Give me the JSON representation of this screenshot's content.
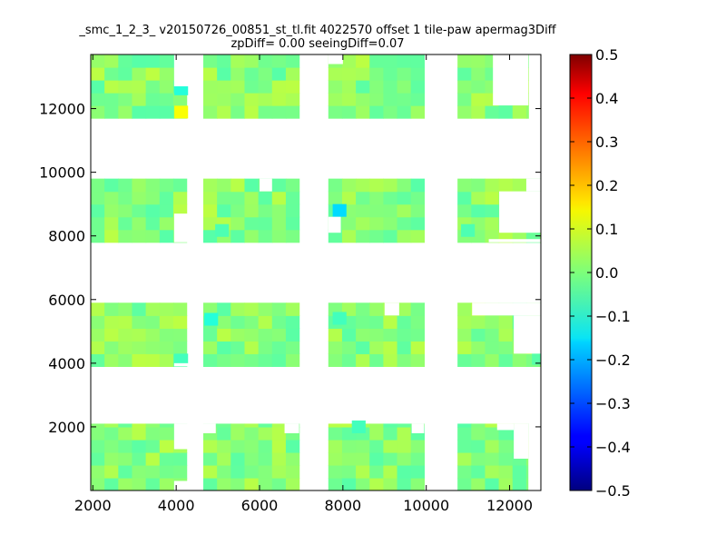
{
  "chart_data": {
    "type": "heatmap",
    "title": "_smc_1_2_3_ v20150726_00851_st_tl.fit 4022570 offset 1 tile-paw apermag3Diff",
    "subtitle": "zpDiff= 0.00 seeingDiff=0.07",
    "xlabel": "",
    "ylabel": "",
    "xlim": [
      1950,
      12750
    ],
    "ylim": [
      0,
      13700
    ],
    "xticks": [
      2000,
      4000,
      6000,
      8000,
      10000,
      12000
    ],
    "xtick_labels": [
      "2000",
      "4000",
      "6000",
      "8000",
      "10000",
      "12000"
    ],
    "yticks": [
      2000,
      4000,
      6000,
      8000,
      10000,
      12000
    ],
    "ytick_labels": [
      "2000",
      "4000",
      "6000",
      "8000",
      "10000",
      "12000"
    ],
    "grid": false,
    "colormap": "jet",
    "colorbar": {
      "vmin": -0.5,
      "vmax": 0.5,
      "ticks": [
        0.5,
        0.4,
        0.3,
        0.2,
        0.1,
        0.0,
        -0.1,
        -0.2,
        -0.3,
        -0.4,
        -0.5
      ],
      "tick_labels": [
        "0.5",
        "0.4",
        "0.3",
        "0.2",
        "0.1",
        "0.0",
        "−0.1",
        "−0.2",
        "−0.3",
        "−0.4",
        "−0.5"
      ]
    },
    "cell_size": [
      330,
      400
    ],
    "blocks": [
      {
        "x_range": [
          1950,
          4250
        ],
        "y_range": [
          0,
          2100
        ]
      },
      {
        "x_range": [
          4650,
          6950
        ],
        "y_range": [
          0,
          2100
        ]
      },
      {
        "x_range": [
          7650,
          9950
        ],
        "y_range": [
          0,
          2100
        ]
      },
      {
        "x_range": [
          10750,
          12450
        ],
        "y_range": [
          0,
          2100
        ]
      },
      {
        "x_range": [
          1950,
          4250
        ],
        "y_range": [
          3900,
          5900
        ]
      },
      {
        "x_range": [
          4650,
          6950
        ],
        "y_range": [
          3900,
          5900
        ]
      },
      {
        "x_range": [
          7650,
          9950
        ],
        "y_range": [
          3900,
          5900
        ]
      },
      {
        "x_range": [
          10750,
          12750
        ],
        "y_range": [
          3900,
          5900
        ]
      },
      {
        "x_range": [
          1950,
          4250
        ],
        "y_range": [
          7800,
          9800
        ]
      },
      {
        "x_range": [
          4650,
          6950
        ],
        "y_range": [
          7800,
          9800
        ]
      },
      {
        "x_range": [
          7650,
          9950
        ],
        "y_range": [
          7800,
          9800
        ]
      },
      {
        "x_range": [
          10750,
          12750
        ],
        "y_range": [
          7800,
          9800
        ]
      },
      {
        "x_range": [
          1950,
          4250
        ],
        "y_range": [
          11700,
          13700
        ]
      },
      {
        "x_range": [
          4650,
          6950
        ],
        "y_range": [
          11700,
          13700
        ]
      },
      {
        "x_range": [
          7650,
          9950
        ],
        "y_range": [
          11700,
          13700
        ]
      },
      {
        "x_range": [
          10750,
          12450
        ],
        "y_range": [
          11700,
          13700
        ]
      }
    ],
    "missing_regions": [
      {
        "x_range": [
          3950,
          4650
        ],
        "y_range": [
          12700,
          13700
        ]
      },
      {
        "x_range": [
          3950,
          4650
        ],
        "y_range": [
          7800,
          8700
        ]
      },
      {
        "x_range": [
          3950,
          4650
        ],
        "y_range": [
          0,
          300
        ]
      },
      {
        "x_range": [
          3950,
          4650
        ],
        "y_range": [
          1300,
          2100
        ]
      },
      {
        "x_range": [
          3950,
          4650
        ],
        "y_range": [
          3900,
          4000
        ]
      },
      {
        "x_range": [
          4350,
          4650
        ],
        "y_range": [
          9500,
          9800
        ]
      },
      {
        "x_range": [
          6000,
          6300
        ],
        "y_range": [
          9400,
          9800
        ]
      },
      {
        "x_range": [
          6600,
          6950
        ],
        "y_range": [
          1800,
          2100
        ]
      },
      {
        "x_range": [
          4650,
          4950
        ],
        "y_range": [
          1800,
          2100
        ]
      },
      {
        "x_range": [
          7650,
          8000
        ],
        "y_range": [
          13400,
          13700
        ]
      },
      {
        "x_range": [
          7650,
          7950
        ],
        "y_range": [
          8100,
          8600
        ]
      },
      {
        "x_range": [
          9000,
          9350
        ],
        "y_range": [
          5500,
          5900
        ]
      },
      {
        "x_range": [
          9650,
          9950
        ],
        "y_range": [
          1800,
          2100
        ]
      },
      {
        "x_range": [
          11600,
          12450
        ],
        "y_range": [
          12100,
          13700
        ]
      },
      {
        "x_range": [
          11500,
          12750
        ],
        "y_range": [
          7800,
          7900
        ]
      },
      {
        "x_range": [
          11750,
          12750
        ],
        "y_range": [
          8100,
          9400
        ]
      },
      {
        "x_range": [
          12400,
          12750
        ],
        "y_range": [
          9400,
          9800
        ]
      },
      {
        "x_range": [
          11100,
          12750
        ],
        "y_range": [
          5500,
          5900
        ]
      },
      {
        "x_range": [
          12100,
          12750
        ],
        "y_range": [
          4300,
          5500
        ]
      },
      {
        "x_range": [
          12100,
          12450
        ],
        "y_range": [
          1000,
          2100
        ]
      },
      {
        "x_range": [
          11700,
          12100
        ],
        "y_range": [
          1900,
          2100
        ]
      },
      {
        "x_range": [
          12450,
          12750
        ],
        "y_range": [
          0,
          2100
        ]
      }
    ],
    "highlighted_cells": [
      {
        "x": 4120,
        "y": 12620,
        "value": -0.09
      },
      {
        "x": 4120,
        "y": 11890,
        "value": 0.12
      },
      {
        "x": 7920,
        "y": 8800,
        "value": -0.16
      },
      {
        "x": 4840,
        "y": 5380,
        "value": -0.09
      },
      {
        "x": 7920,
        "y": 5410,
        "value": -0.06
      },
      {
        "x": 8380,
        "y": 2000,
        "value": -0.06
      },
      {
        "x": 4120,
        "y": 4100,
        "value": -0.06
      },
      {
        "x": 11000,
        "y": 8170,
        "value": -0.05
      },
      {
        "x": 5100,
        "y": 8170,
        "value": -0.05
      },
      {
        "x": 12700,
        "y": 4150,
        "value": -0.04
      }
    ],
    "typical_value_range": [
      -0.04,
      0.06
    ],
    "value_seed": 7
  }
}
